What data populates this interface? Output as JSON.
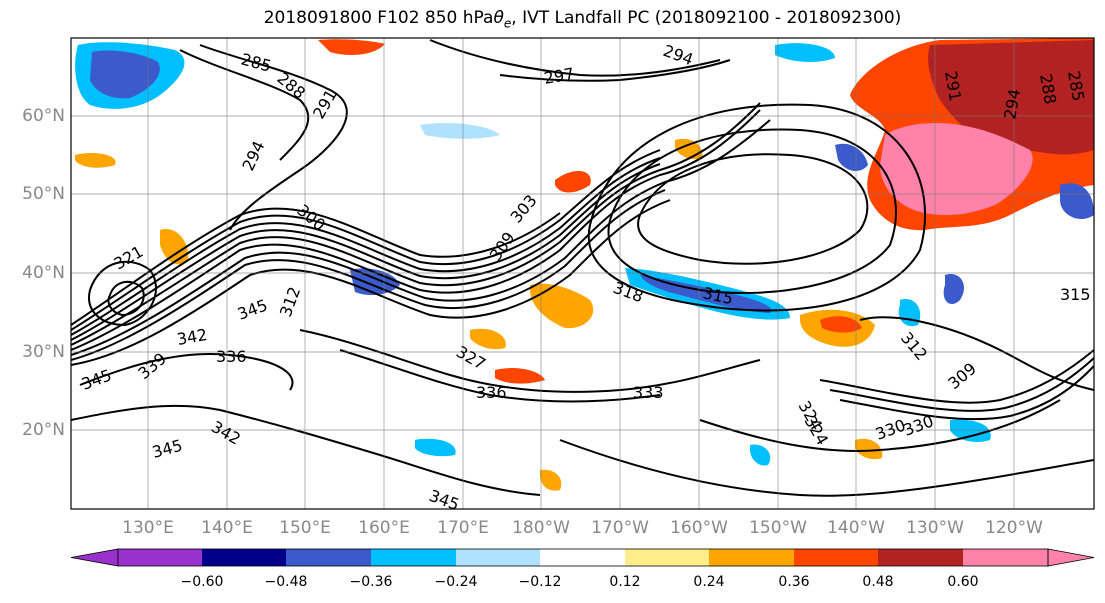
{
  "title": {
    "prefix": "2018091800 F102 850 hPa ",
    "theta_symbol": "θ",
    "theta_sub": "e",
    "suffix": ", IVT Landfall PC (2018092100 - 2018092300)"
  },
  "map": {
    "lat_labels": [
      "60°N",
      "50°N",
      "40°N",
      "30°N",
      "20°N"
    ],
    "lon_labels": [
      "130°E",
      "140°E",
      "150°E",
      "160°E",
      "170°E",
      "180°W",
      "170°W",
      "160°W",
      "150°W",
      "140°W",
      "130°W",
      "120°W"
    ],
    "contour_labels": [
      "285",
      "288",
      "291",
      "294",
      "297",
      "294",
      "291",
      "288",
      "285",
      "294",
      "300",
      "303",
      "309",
      "312",
      "315",
      "318",
      "321",
      "324",
      "327",
      "330",
      "333",
      "336",
      "339",
      "342",
      "345",
      "309",
      "312",
      "315",
      "324",
      "330",
      "336",
      "342",
      "345",
      "345",
      "345"
    ]
  },
  "colorbar": {
    "colors": [
      "#9932cc",
      "#00008b",
      "#3b5bcc",
      "#00bfff",
      "#b0e2ff",
      "#ffffff",
      "#ffec8b",
      "#ffa500",
      "#ff4500",
      "#b22222",
      "#ff82ab",
      "#ff82ab"
    ],
    "tick_labels": [
      "−0.60",
      "−0.48",
      "−0.36",
      "−0.24",
      "−0.12",
      "0.12",
      "0.24",
      "0.36",
      "0.48",
      "0.60"
    ]
  }
}
